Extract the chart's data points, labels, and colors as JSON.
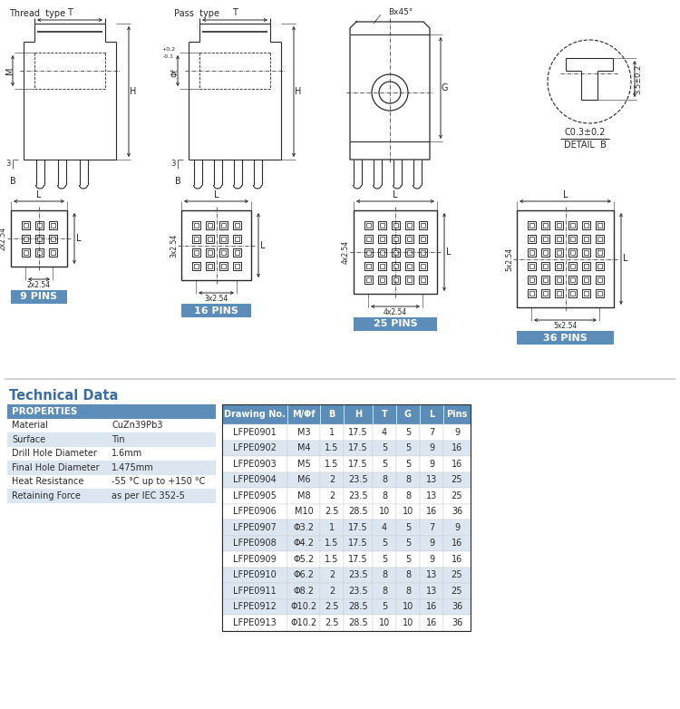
{
  "bg_color": "#ffffff",
  "line_color": "#2a2a2a",
  "blue_color": "#3a6ea5",
  "header_blue": "#5b8db8",
  "table_row_alt": "#dce6f0",
  "table_row_shade": "#eeeeee",
  "properties": [
    [
      "Material",
      "CuZn39Pb3"
    ],
    [
      "Surface",
      "Tin"
    ],
    [
      "Drill Hole Diameter",
      "1.6mm"
    ],
    [
      "Final Hole Diameter",
      "1.475mm"
    ],
    [
      "Heat Resistance",
      "-55 °C up to +150 °C"
    ],
    [
      "Retaining Force",
      "as per IEC 352-5"
    ]
  ],
  "table_headers": [
    "Drawing No.",
    "M/Φf",
    "B",
    "H",
    "T",
    "G",
    "L",
    "Pins"
  ],
  "table_data": [
    [
      "LFPE0901",
      "M3",
      "1",
      "17.5",
      "4",
      "5",
      "7",
      "9"
    ],
    [
      "LFPE0902",
      "M4",
      "1.5",
      "17.5",
      "5",
      "5",
      "9",
      "16"
    ],
    [
      "LFPE0903",
      "M5",
      "1.5",
      "17.5",
      "5",
      "5",
      "9",
      "16"
    ],
    [
      "LFPE0904",
      "M6",
      "2",
      "23.5",
      "8",
      "8",
      "13",
      "25"
    ],
    [
      "LFPE0905",
      "M8",
      "2",
      "23.5",
      "8",
      "8",
      "13",
      "25"
    ],
    [
      "LFPE0906",
      "M10",
      "2.5",
      "28.5",
      "10",
      "10",
      "16",
      "36"
    ],
    [
      "LFPE0907",
      "Φ3.2",
      "1",
      "17.5",
      "4",
      "5",
      "7",
      "9"
    ],
    [
      "LFPE0908",
      "Φ4.2",
      "1.5",
      "17.5",
      "5",
      "5",
      "9",
      "16"
    ],
    [
      "LFPE0909",
      "Φ5.2",
      "1.5",
      "17.5",
      "5",
      "5",
      "9",
      "16"
    ],
    [
      "LFPE0910",
      "Φ6.2",
      "2",
      "23.5",
      "8",
      "8",
      "13",
      "25"
    ],
    [
      "LFPE0911",
      "Φ8.2",
      "2",
      "23.5",
      "8",
      "8",
      "13",
      "25"
    ],
    [
      "LFPE0912",
      "Φ10.2",
      "2.5",
      "28.5",
      "5",
      "10",
      "16",
      "36"
    ],
    [
      "LFPE0913",
      "Φ10.2",
      "2.5",
      "28.5",
      "10",
      "10",
      "16",
      "36"
    ]
  ],
  "grid_configs": [
    {
      "nx": 3,
      "ny": 3,
      "label": "9 PINS",
      "sh": "2x2.54",
      "sv": "2x2.54",
      "ox": 12
    },
    {
      "nx": 4,
      "ny": 4,
      "label": "16 PINS",
      "sh": "3x2.54",
      "sv": "3x2.54",
      "ox": 200
    },
    {
      "nx": 5,
      "ny": 5,
      "label": "25 PINS",
      "sh": "4x2.54",
      "sv": "4x2.54",
      "ox": 390
    },
    {
      "nx": 6,
      "ny": 6,
      "label": "36 PINS",
      "sh": "5x2.54",
      "sv": "5x2.54",
      "ox": 570
    }
  ]
}
